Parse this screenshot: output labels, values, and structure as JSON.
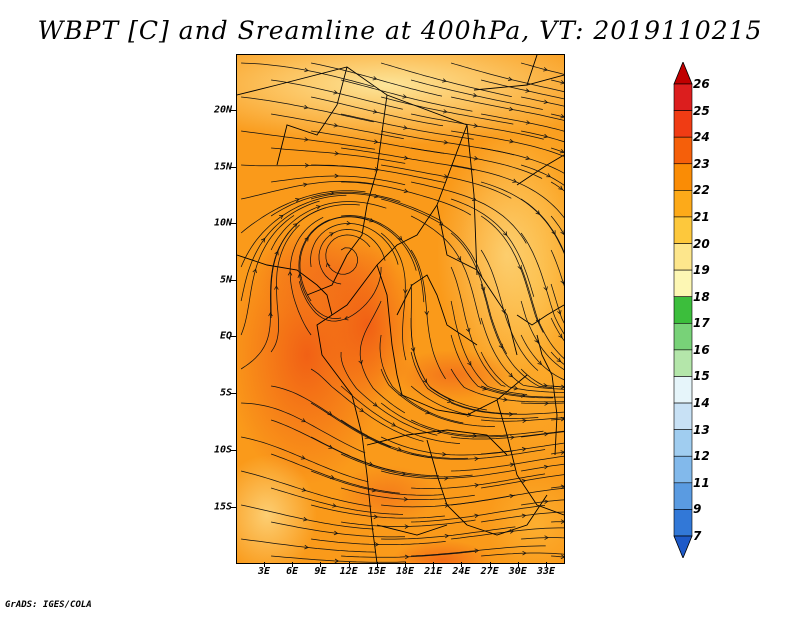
{
  "title": "WBPT [C] and Sreamline at 400hPa, VT: 2019110215",
  "credit": "GrADS: IGES/COLA",
  "latitude_labels": [
    "20N",
    "15N",
    "10N",
    "5N",
    "EQ",
    "5S",
    "10S",
    "15S"
  ],
  "longitude_labels": [
    "3E",
    "6E",
    "9E",
    "12E",
    "15E",
    "18E",
    "21E",
    "24E",
    "27E",
    "30E",
    "33E"
  ],
  "colorbar": {
    "labels": [
      "26",
      "25",
      "24",
      "23",
      "22",
      "21",
      "20",
      "19",
      "18",
      "17",
      "16",
      "15",
      "14",
      "13",
      "12",
      "11",
      "9",
      "7"
    ],
    "colors": [
      "#c00000",
      "#dc1e1e",
      "#f03c14",
      "#f55f0a",
      "#fa8c05",
      "#fdaa19",
      "#fdc83c",
      "#fde68c",
      "#fdf7b4",
      "#3cbe3c",
      "#78d278",
      "#b4e6aa",
      "#e6f5fa",
      "#c8e1f5",
      "#a0cdf0",
      "#82b9eb",
      "#5a9be1",
      "#3278d7",
      "#1e5ac8"
    ]
  },
  "map": {
    "variable": "WBPT",
    "units": "C",
    "level": "400hPa",
    "valid_time": "2019110215",
    "lon_range": [
      0,
      35
    ],
    "lat_range": [
      -20,
      24
    ],
    "features": [
      "streamlines",
      "country-borders",
      "coastlines"
    ]
  }
}
